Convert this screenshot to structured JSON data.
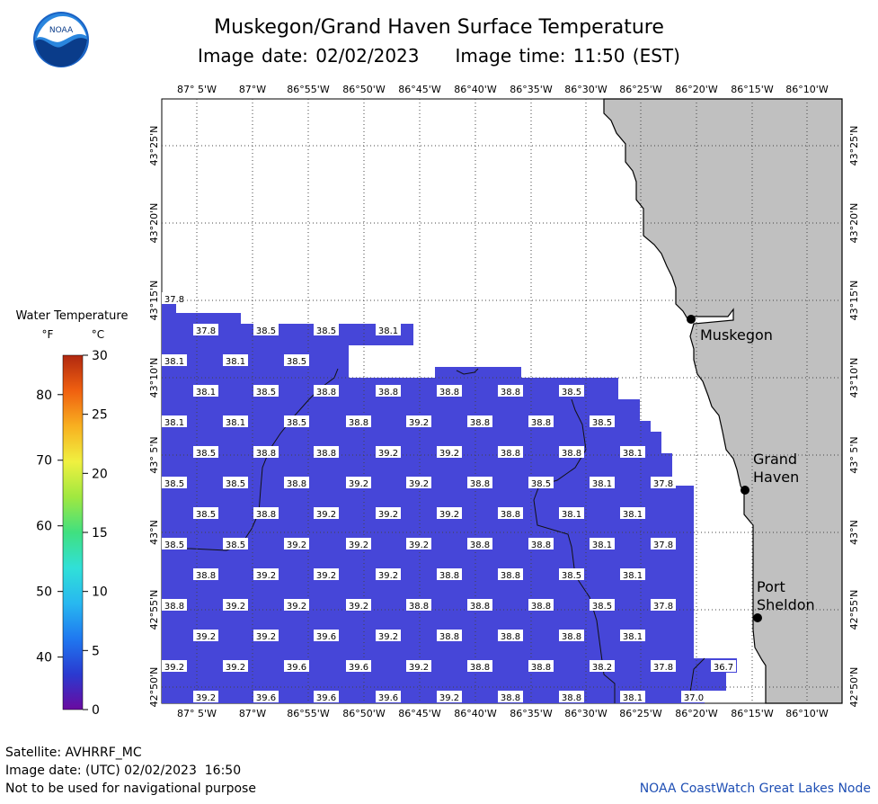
{
  "header": {
    "title": "Muskegon/Grand Haven Surface Temperature",
    "image_date": "Image date: 02/02/2023",
    "image_time": "Image time: 11:50 (EST)"
  },
  "logo": {
    "text": "NOAA",
    "icon": "noaa-logo-icon"
  },
  "legend": {
    "title": "Water Temperature",
    "unit_f": "°F",
    "unit_c": "°C",
    "f_ticks": [
      "80",
      "70",
      "60",
      "50",
      "40"
    ],
    "f_values": [
      80,
      70,
      60,
      50,
      40
    ],
    "c_ticks": [
      "30",
      "25",
      "20",
      "15",
      "10",
      "5",
      "0"
    ],
    "c_values": [
      30,
      25,
      20,
      15,
      10,
      5,
      0
    ],
    "colormap": [
      "#6a0aa0",
      "#2a3ad0",
      "#1f78f0",
      "#28b8f0",
      "#30e0d8",
      "#40e080",
      "#a0e840",
      "#f0f040",
      "#f8b020",
      "#f06010",
      "#b02810"
    ]
  },
  "map": {
    "longitude_labels": [
      "87° 5'W",
      "87°W",
      "86°55'W",
      "86°50'W",
      "86°45'W",
      "86°40'W",
      "86°35'W",
      "86°30'W",
      "86°25'W",
      "86°20'W",
      "86°15'W",
      "86°10'W"
    ],
    "latitude_labels": [
      "43°25'N",
      "43°20'N",
      "43°15'N",
      "43°10'N",
      "43° 5'N",
      "43°N",
      "42°55'N",
      "42°50'N"
    ],
    "cities": [
      "Muskegon",
      "Grand",
      "Haven",
      "Port",
      "Sheldon"
    ],
    "colors": {
      "water": "#4646d8",
      "land": "#c0c0c0",
      "grid": "#555555"
    },
    "temperature_rows": [
      [
        "37.8"
      ],
      [
        "37.8",
        "38.5",
        "38.5",
        "38.1"
      ],
      [
        "38.1",
        "38.1",
        "38.5"
      ],
      [
        "38.1",
        "38.5",
        "38.8",
        "38.8",
        "38.8",
        "38.8",
        "38.5"
      ],
      [
        "38.1",
        "38.1",
        "38.5",
        "38.8",
        "39.2",
        "38.8",
        "38.8",
        "38.5"
      ],
      [
        "38.5",
        "38.8",
        "38.8",
        "39.2",
        "39.2",
        "38.8",
        "38.8",
        "38.1"
      ],
      [
        "38.5",
        "38.5",
        "38.8",
        "39.2",
        "39.2",
        "38.8",
        "38.5",
        "38.1",
        "37.8"
      ],
      [
        "38.5",
        "38.8",
        "39.2",
        "39.2",
        "39.2",
        "38.8",
        "38.1",
        "38.1"
      ],
      [
        "38.5",
        "38.5",
        "39.2",
        "39.2",
        "39.2",
        "38.8",
        "38.8",
        "38.1",
        "37.8"
      ],
      [
        "38.8",
        "39.2",
        "39.2",
        "39.2",
        "38.8",
        "38.8",
        "38.5",
        "38.1"
      ],
      [
        "38.8",
        "39.2",
        "39.2",
        "39.2",
        "38.8",
        "38.8",
        "38.8",
        "38.5",
        "37.8"
      ],
      [
        "39.2",
        "39.2",
        "39.6",
        "39.2",
        "38.8",
        "38.8",
        "38.8",
        "38.1"
      ],
      [
        "39.2",
        "39.2",
        "39.6",
        "39.6",
        "39.2",
        "38.8",
        "38.8",
        "38.2",
        "37.8",
        "36.7"
      ],
      [
        "39.2",
        "39.6",
        "39.6",
        "39.6",
        "39.2",
        "38.8",
        "38.8",
        "38.1",
        "37.0"
      ]
    ]
  },
  "footer": {
    "satellite": "Satellite: AVHRRF_MC",
    "utc_date": "Image date: (UTC) 02/02/2023  16:50",
    "disclaimer": "Not to be used for navigational purpose",
    "credit": "NOAA CoastWatch Great Lakes Node"
  }
}
